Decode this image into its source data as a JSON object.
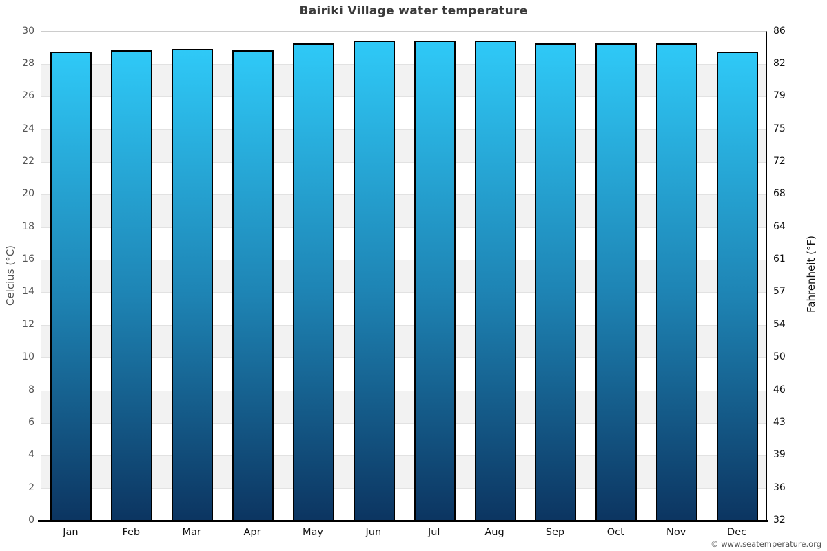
{
  "title": "Bairiki Village water temperature",
  "footer": "© www.seatemperature.org",
  "axes": {
    "left_label": "Celcius (°C)",
    "right_label": "Fahrenheit (°F)",
    "celsius_ticks": [
      0,
      2,
      4,
      6,
      8,
      10,
      12,
      14,
      16,
      18,
      20,
      22,
      24,
      26,
      28,
      30
    ],
    "fahrenheit_ticks": [
      32,
      36,
      39,
      43,
      46,
      50,
      54,
      57,
      61,
      64,
      68,
      72,
      75,
      79,
      82,
      86
    ]
  },
  "chart_data": {
    "type": "bar",
    "title": "Bairiki Village water temperature",
    "categories": [
      "Jan",
      "Feb",
      "Mar",
      "Apr",
      "May",
      "Jun",
      "Jul",
      "Aug",
      "Sep",
      "Oct",
      "Nov",
      "Dec"
    ],
    "values": [
      28.7,
      28.8,
      28.9,
      28.8,
      29.2,
      29.4,
      29.4,
      29.4,
      29.2,
      29.2,
      29.2,
      28.7
    ],
    "unit": "°C",
    "xlabel": "",
    "ylabel": "Celcius (°C)",
    "y2label": "Fahrenheit (°F)",
    "ylim": [
      0,
      30
    ],
    "ytick_step": 2,
    "y2ticks": [
      32,
      36,
      39,
      43,
      46,
      50,
      54,
      57,
      61,
      64,
      68,
      72,
      75,
      79,
      82,
      86
    ],
    "grid": "horizontal-bands-alternating",
    "legend": "none"
  },
  "colors": {
    "title_text": "#3a3a3a",
    "left_axis_text": "#555555",
    "right_axis_text": "#111111",
    "month_text": "#111111",
    "band_gray": "#f2f2f2",
    "band_white": "#ffffff",
    "gridline": "#e2e2e2",
    "plot_border_light": "#cccccc",
    "plot_border_right": "#000000",
    "axis_bottom": "#000000",
    "bar_gradient_top": "#2fc9f7",
    "bar_gradient_mid": "#1e84b4",
    "bar_gradient_bottom": "#0c3561",
    "bar_border": "#000000",
    "footer_text": "#555555"
  }
}
